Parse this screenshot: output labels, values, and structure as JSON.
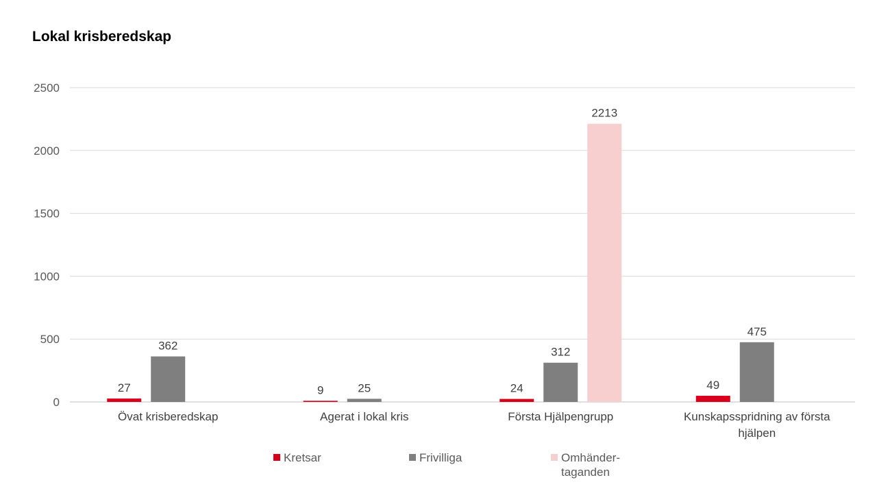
{
  "chart_data": {
    "type": "bar",
    "title": "Lokal krisberedskap",
    "categories": [
      [
        "Övat krisberedskap"
      ],
      [
        "Agerat i lokal kris"
      ],
      [
        "Första Hjälpengrupp"
      ],
      [
        "Kunskapsspridning av första",
        "hjälpen"
      ]
    ],
    "series": [
      {
        "name": "Kretsar",
        "color": "#d9001b",
        "values": [
          27,
          9,
          24,
          49
        ]
      },
      {
        "name": "Frivilliga",
        "color": "#7f7f7f",
        "values": [
          362,
          25,
          312,
          475
        ]
      },
      {
        "name": "Omhänder-taganden",
        "name_lines": [
          "Omhänder-",
          "taganden"
        ],
        "color": "#f8cfcf",
        "values": [
          null,
          null,
          2213,
          null
        ]
      }
    ],
    "ylim": [
      0,
      2500
    ],
    "yticks": [
      0,
      500,
      1000,
      1500,
      2000,
      2500
    ],
    "grid": true,
    "legend_position": "bottom",
    "xlabel": "",
    "ylabel": ""
  }
}
